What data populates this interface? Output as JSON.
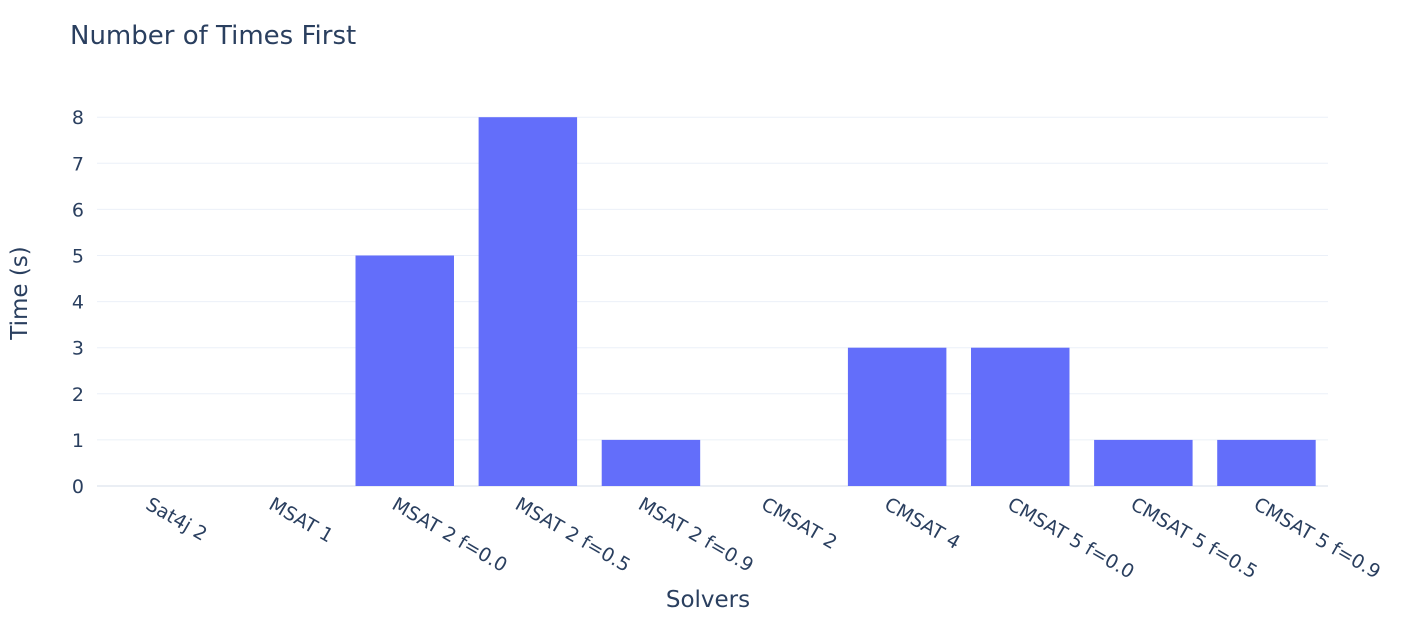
{
  "chart_data": {
    "type": "bar",
    "title": "Number of Times First",
    "xlabel": "Solvers",
    "ylabel": "Time (s)",
    "categories": [
      "Sat4j 2",
      "MSAT 1",
      "MSAT 2 f=0.0",
      "MSAT 2 f=0.5",
      "MSAT 2 f=0.9",
      "CMSAT 2",
      "CMSAT 4",
      "CMSAT 5 f=0.0",
      "CMSAT 5 f=0.5",
      "CMSAT 5 f=0.9"
    ],
    "values": [
      0,
      0,
      5,
      8,
      1,
      0,
      3,
      3,
      1,
      1
    ],
    "ylim": [
      0,
      8.4
    ],
    "yticks": [
      0,
      1,
      2,
      3,
      4,
      5,
      6,
      7,
      8
    ],
    "grid": true,
    "legend": "none",
    "colors": {
      "bar": "#636efa"
    }
  }
}
